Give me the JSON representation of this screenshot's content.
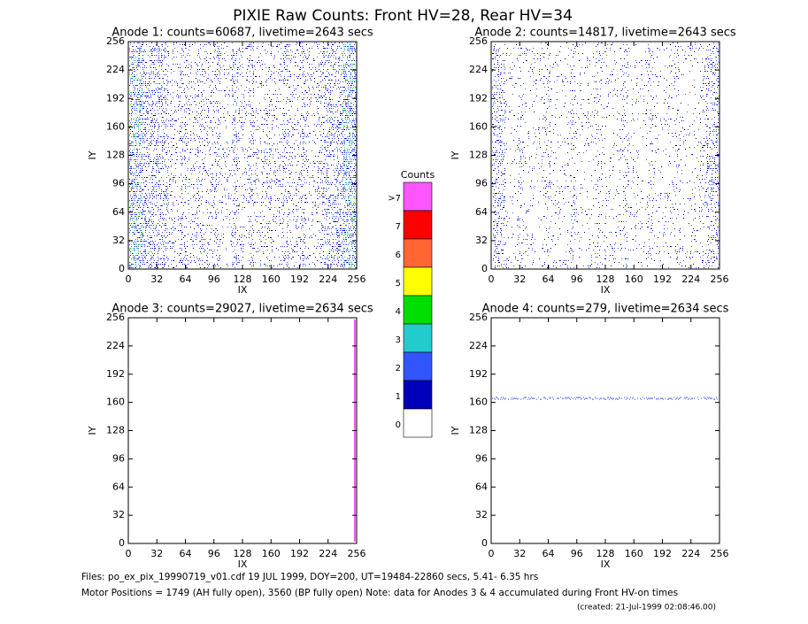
{
  "title": "PIXIE Raw Counts:  Front HV=28, Rear HV=34",
  "chart_data": [
    {
      "type": "image",
      "title": "Anode 1: counts=60687, livetime=2643 secs",
      "xlabel": "IX",
      "ylabel": "IY",
      "xlim": [
        0,
        256
      ],
      "ylim": [
        0,
        256
      ],
      "xticks": [
        0,
        32,
        64,
        96,
        128,
        160,
        192,
        224,
        256
      ],
      "yticks": [
        0,
        32,
        64,
        96,
        128,
        160,
        192,
        224,
        256
      ]
    },
    {
      "type": "image",
      "title": "Anode 2: counts=14817, livetime=2643 secs",
      "xlabel": "IX",
      "ylabel": "IY",
      "xlim": [
        0,
        256
      ],
      "ylim": [
        0,
        256
      ],
      "xticks": [
        0,
        32,
        64,
        96,
        128,
        160,
        192,
        224,
        256
      ],
      "yticks": [
        0,
        32,
        64,
        96,
        128,
        160,
        192,
        224,
        256
      ]
    },
    {
      "type": "image",
      "title": "Anode 3: counts=29027, livetime=2634 secs",
      "xlabel": "IX",
      "ylabel": "IY",
      "xlim": [
        0,
        256
      ],
      "ylim": [
        0,
        256
      ],
      "xticks": [
        0,
        32,
        64,
        96,
        128,
        160,
        192,
        224,
        256
      ],
      "yticks": [
        0,
        32,
        64,
        96,
        128,
        160,
        192,
        224,
        256
      ]
    },
    {
      "type": "image",
      "title": "Anode 4: counts=279, livetime=2634 secs",
      "xlabel": "IX",
      "ylabel": "IY",
      "xlim": [
        0,
        256
      ],
      "ylim": [
        0,
        256
      ],
      "xticks": [
        0,
        32,
        64,
        96,
        128,
        160,
        192,
        224,
        256
      ],
      "yticks": [
        0,
        32,
        64,
        96,
        128,
        160,
        192,
        224,
        256
      ]
    }
  ],
  "colorbar": {
    "title": "Counts",
    "labels": [
      ">7",
      "7",
      "6",
      "5",
      "4",
      "3",
      "2",
      "1",
      "0"
    ],
    "colors": [
      "#ff55ff",
      "#ff0000",
      "#ff6633",
      "#ffff00",
      "#00dd00",
      "#22cccc",
      "#3355ff",
      "#0000bb",
      "#ffffff"
    ]
  },
  "footer": [
    "Files: po_ex_pix_19990719_v01.cdf    19 JUL 1999, DOY=200, UT=19484-22860 secs,  5.41- 6.35 hrs",
    "Motor Positions = 1749 (AH fully open), 3560 (BP fully open)    Note: data for Anodes 3 & 4 accumulated during Front HV-on times",
    "(created: 21-Jul-1999 02:08:46.00)"
  ]
}
